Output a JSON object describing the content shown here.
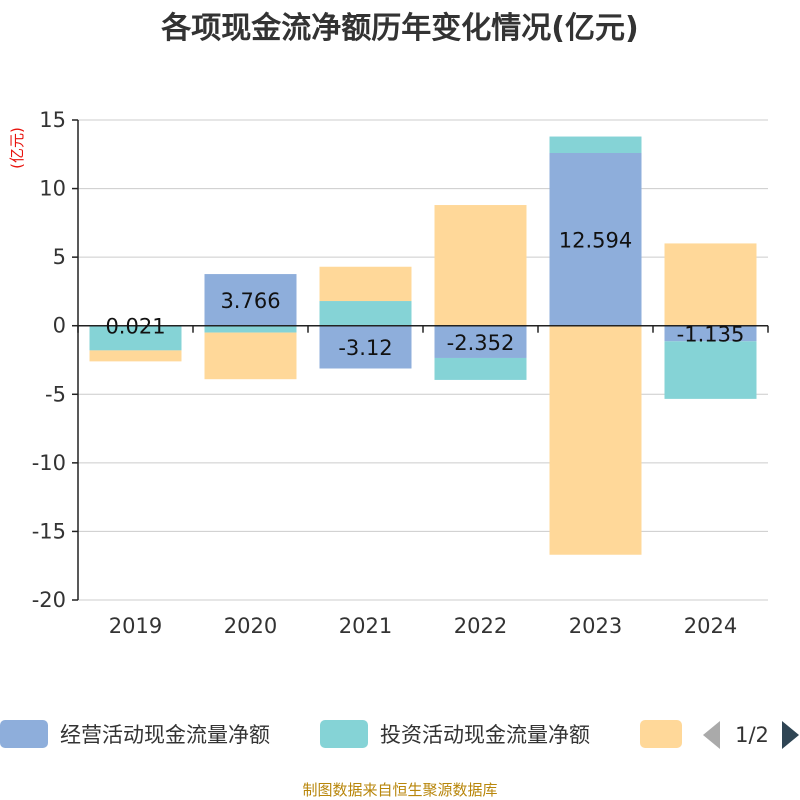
{
  "header": {
    "title": "各项现金流净额历年变化情况(亿元)"
  },
  "unit_label": "(亿元)",
  "footer": {
    "source": "制图数据来自恒生聚源数据库"
  },
  "legend": {
    "items": [
      {
        "name": "经营活动现金流量净额",
        "color": "#8eaedb"
      },
      {
        "name": "投资活动现金流量净额",
        "color": "#85d3d6"
      },
      {
        "name": "",
        "color": "#ffd899"
      }
    ],
    "page": "1/2",
    "prev_icon": "triangle-left-icon",
    "next_icon": "triangle-right-icon"
  },
  "chart_data": {
    "type": "bar",
    "stacked": true,
    "title": "各项现金流净额历年变化情况(亿元)",
    "ylabel": "(亿元)",
    "ylim": [
      -20,
      15
    ],
    "yticks": [
      15,
      10,
      5,
      0,
      -5,
      -10,
      -15,
      -20
    ],
    "grid": true,
    "legend_position": "bottom",
    "categories": [
      "2019",
      "2020",
      "2021",
      "2022",
      "2023",
      "2024"
    ],
    "series": [
      {
        "name": "经营活动现金流量净额",
        "color": "#8eaedb",
        "values": [
          0.021,
          3.766,
          -3.12,
          -2.352,
          12.594,
          -1.135
        ],
        "labels": [
          "0.021",
          "3.766",
          "-3.12",
          "-2.352",
          "12.594",
          "-1.135"
        ]
      },
      {
        "name": "投资活动现金流量净额",
        "color": "#85d3d6",
        "values": [
          -1.8,
          -0.5,
          1.8,
          -1.6,
          1.2,
          -4.2
        ]
      },
      {
        "name": "",
        "color": "#ffd899",
        "values": [
          -0.8,
          -3.4,
          2.5,
          8.8,
          -16.7,
          6.0
        ]
      }
    ]
  }
}
